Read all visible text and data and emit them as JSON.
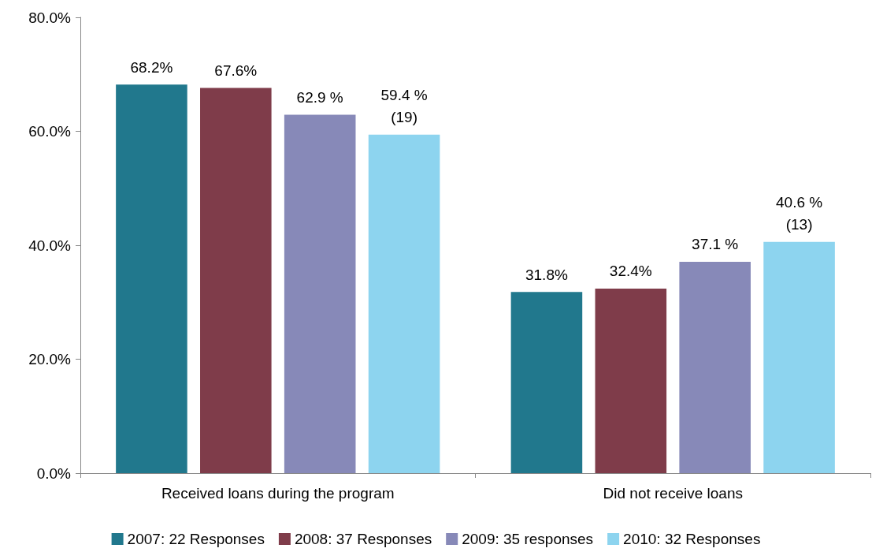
{
  "chart_data": {
    "type": "bar",
    "categories": [
      "Received loans during the program",
      "Did not receive loans"
    ],
    "series": [
      {
        "name": "2007: 22 Responses",
        "color": "#21788d",
        "values": [
          68.2,
          31.8
        ],
        "value_labels": [
          "68.2%",
          "31.8%"
        ]
      },
      {
        "name": "2008: 37 Responses",
        "color": "#7f3c4a",
        "values": [
          67.6,
          32.4
        ],
        "value_labels": [
          "67.6%",
          "32.4%"
        ]
      },
      {
        "name": "2009: 35 responses",
        "color": "#8789b8",
        "values": [
          62.9,
          37.1
        ],
        "value_labels": [
          "62.9 %",
          "37.1 %"
        ]
      },
      {
        "name": "2010: 32 Responses",
        "color": "#8dd4ef",
        "values": [
          59.4,
          40.6
        ],
        "value_labels": [
          "59.4 %\n(19)",
          "40.6 %\n(13)"
        ]
      }
    ],
    "ylim": [
      0,
      80
    ],
    "yticks": [
      {
        "value": 0,
        "label": "0.0%"
      },
      {
        "value": 20,
        "label": "20.0%"
      },
      {
        "value": 40,
        "label": "40.0%"
      },
      {
        "value": 60,
        "label": "60.0%"
      },
      {
        "value": 80,
        "label": "80.0%"
      }
    ],
    "grid": false,
    "legend": "bottom"
  }
}
